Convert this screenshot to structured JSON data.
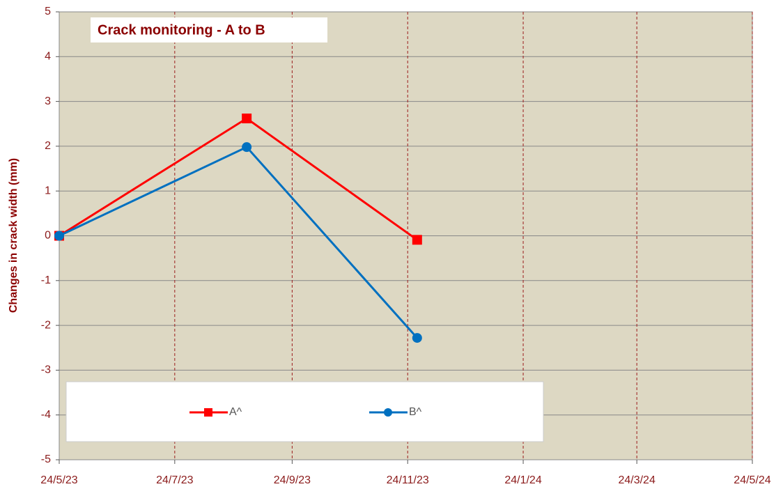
{
  "chart_data": {
    "type": "line",
    "title": "Crack monitoring - A to B",
    "y_label": "Changes in crack width (mm)",
    "x": [
      "2023-05-24",
      "2023-08-31",
      "2023-11-29"
    ],
    "series": [
      {
        "name": "A^",
        "color": "#ff0000",
        "marker": "square",
        "values": [
          0,
          2.62,
          -0.09
        ]
      },
      {
        "name": "B^",
        "color": "#0070c0",
        "marker": "circle",
        "values": [
          0,
          1.98,
          -2.28
        ]
      }
    ],
    "xlim": [
      "2023-05-24",
      "2024-05-24"
    ],
    "xticks": [
      {
        "value": "2023-05-24",
        "label": "24/5/23"
      },
      {
        "value": "2023-07-24",
        "label": "24/7/23"
      },
      {
        "value": "2023-09-24",
        "label": "24/9/23"
      },
      {
        "value": "2023-11-24",
        "label": "24/11/23"
      },
      {
        "value": "2024-01-24",
        "label": "24/1/24"
      },
      {
        "value": "2024-03-24",
        "label": "24/3/24"
      },
      {
        "value": "2024-05-24",
        "label": "24/5/24"
      }
    ],
    "ylim": [
      -5,
      5
    ],
    "yticks": [
      -5,
      -4,
      -3,
      -2,
      -1,
      0,
      1,
      2,
      3,
      4,
      5
    ],
    "grid": true
  }
}
